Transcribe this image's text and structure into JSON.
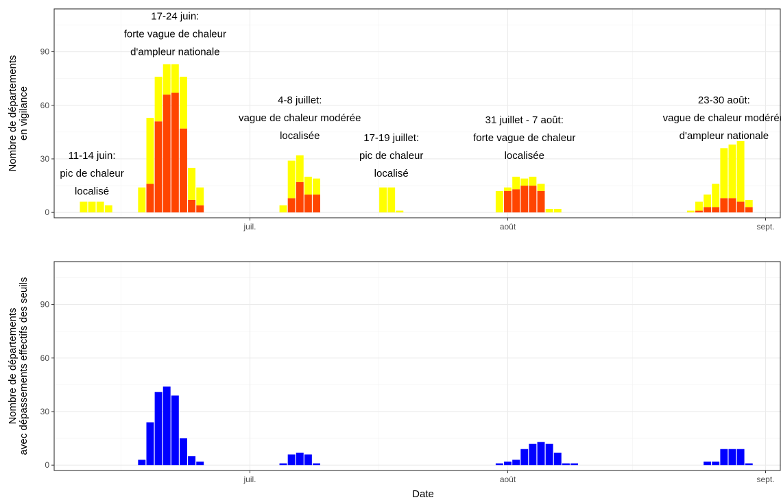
{
  "chart_data": [
    {
      "type": "bar",
      "stacked": true,
      "ylabel": [
        "Nombre de départements",
        "en vigilance"
      ],
      "ylim": [
        -3,
        114
      ],
      "yticks": [
        "0",
        "30",
        "60",
        "90"
      ],
      "xticks": [
        "juil.",
        "août",
        "sept."
      ],
      "grid": true,
      "colors": {
        "orange": "#FF4500",
        "yellow": "#FFFF00"
      },
      "series": [
        {
          "color": "orange",
          "values": [
            [
              "06-19",
              16
            ],
            [
              "06-20",
              51
            ],
            [
              "06-21",
              66
            ],
            [
              "06-22",
              67
            ],
            [
              "06-23",
              47
            ],
            [
              "06-24",
              7
            ],
            [
              "06-25",
              4
            ],
            [
              "07-06",
              8
            ],
            [
              "07-07",
              17
            ],
            [
              "07-08",
              10
            ],
            [
              "07-09",
              10
            ],
            [
              "08-01",
              12
            ],
            [
              "08-02",
              13
            ],
            [
              "08-03",
              15
            ],
            [
              "08-04",
              15
            ],
            [
              "08-05",
              12
            ],
            [
              "08-24",
              1
            ],
            [
              "08-25",
              3
            ],
            [
              "08-26",
              3
            ],
            [
              "08-27",
              8
            ],
            [
              "08-28",
              8
            ],
            [
              "08-29",
              6
            ],
            [
              "08-30",
              3
            ]
          ]
        },
        {
          "color": "yellow",
          "values": [
            [
              "06-11",
              6
            ],
            [
              "06-12",
              6
            ],
            [
              "06-13",
              6
            ],
            [
              "06-14",
              4
            ],
            [
              "06-18",
              14
            ],
            [
              "06-19",
              37
            ],
            [
              "06-20",
              25
            ],
            [
              "06-21",
              17
            ],
            [
              "06-22",
              16
            ],
            [
              "06-23",
              29
            ],
            [
              "06-24",
              18
            ],
            [
              "06-25",
              10
            ],
            [
              "07-05",
              4
            ],
            [
              "07-06",
              21
            ],
            [
              "07-07",
              15
            ],
            [
              "07-08",
              10
            ],
            [
              "07-09",
              9
            ],
            [
              "07-17",
              14
            ],
            [
              "07-18",
              14
            ],
            [
              "07-19",
              1
            ],
            [
              "07-31",
              12
            ],
            [
              "08-01",
              2
            ],
            [
              "08-02",
              7
            ],
            [
              "08-03",
              4
            ],
            [
              "08-04",
              5
            ],
            [
              "08-05",
              4
            ],
            [
              "08-06",
              2
            ],
            [
              "08-07",
              2
            ],
            [
              "08-23",
              1
            ],
            [
              "08-24",
              5
            ],
            [
              "08-25",
              7
            ],
            [
              "08-26",
              13
            ],
            [
              "08-27",
              28
            ],
            [
              "08-28",
              30
            ],
            [
              "08-29",
              34
            ],
            [
              "08-30",
              4
            ]
          ]
        }
      ],
      "annotations": [
        {
          "date": "06-12",
          "y": 30,
          "lines": [
            "11-14 juin:",
            "pic de chaleur",
            "localisé"
          ]
        },
        {
          "date": "06-22",
          "y": 108,
          "lines": [
            "17-24 juin:",
            "forte vague de chaleur",
            "d'ampleur nationale"
          ]
        },
        {
          "date": "07-07",
          "y": 61,
          "lines": [
            "4-8 juillet:",
            "vague de chaleur modérée",
            "localisée"
          ]
        },
        {
          "date": "07-18",
          "y": 40,
          "lines": [
            "17-19 juillet:",
            "pic de chaleur",
            "localisé"
          ]
        },
        {
          "date": "08-03",
          "y": 50,
          "lines": [
            "31 juillet - 7 août:",
            "forte vague de chaleur",
            "localisée"
          ]
        },
        {
          "date": "08-27",
          "y": 61,
          "lines": [
            "23-30 août:",
            "vague de chaleur modérée",
            "d'ampleur nationale"
          ]
        }
      ]
    },
    {
      "type": "bar",
      "xlabel": "Date",
      "ylabel": [
        "Nombre de départements",
        "avec dépassements effectifs des seuils"
      ],
      "ylim": [
        -3,
        114
      ],
      "yticks": [
        "0",
        "30",
        "60",
        "90"
      ],
      "xticks": [
        "juil.",
        "août",
        "sept."
      ],
      "grid": true,
      "colors": {
        "blue": "#0000FF"
      },
      "series": [
        {
          "color": "blue",
          "values": [
            [
              "06-18",
              3
            ],
            [
              "06-19",
              24
            ],
            [
              "06-20",
              41
            ],
            [
              "06-21",
              44
            ],
            [
              "06-22",
              39
            ],
            [
              "06-23",
              15
            ],
            [
              "06-24",
              5
            ],
            [
              "06-25",
              2
            ],
            [
              "07-05",
              1
            ],
            [
              "07-06",
              6
            ],
            [
              "07-07",
              7
            ],
            [
              "07-08",
              6
            ],
            [
              "07-09",
              1
            ],
            [
              "07-31",
              1
            ],
            [
              "08-01",
              2
            ],
            [
              "08-02",
              3
            ],
            [
              "08-03",
              9
            ],
            [
              "08-04",
              12
            ],
            [
              "08-05",
              13
            ],
            [
              "08-06",
              12
            ],
            [
              "08-07",
              7
            ],
            [
              "08-08",
              1
            ],
            [
              "08-09",
              1
            ],
            [
              "08-25",
              2
            ],
            [
              "08-26",
              2
            ],
            [
              "08-27",
              9
            ],
            [
              "08-28",
              9
            ],
            [
              "08-29",
              9
            ],
            [
              "08-30",
              1
            ]
          ]
        }
      ]
    }
  ]
}
